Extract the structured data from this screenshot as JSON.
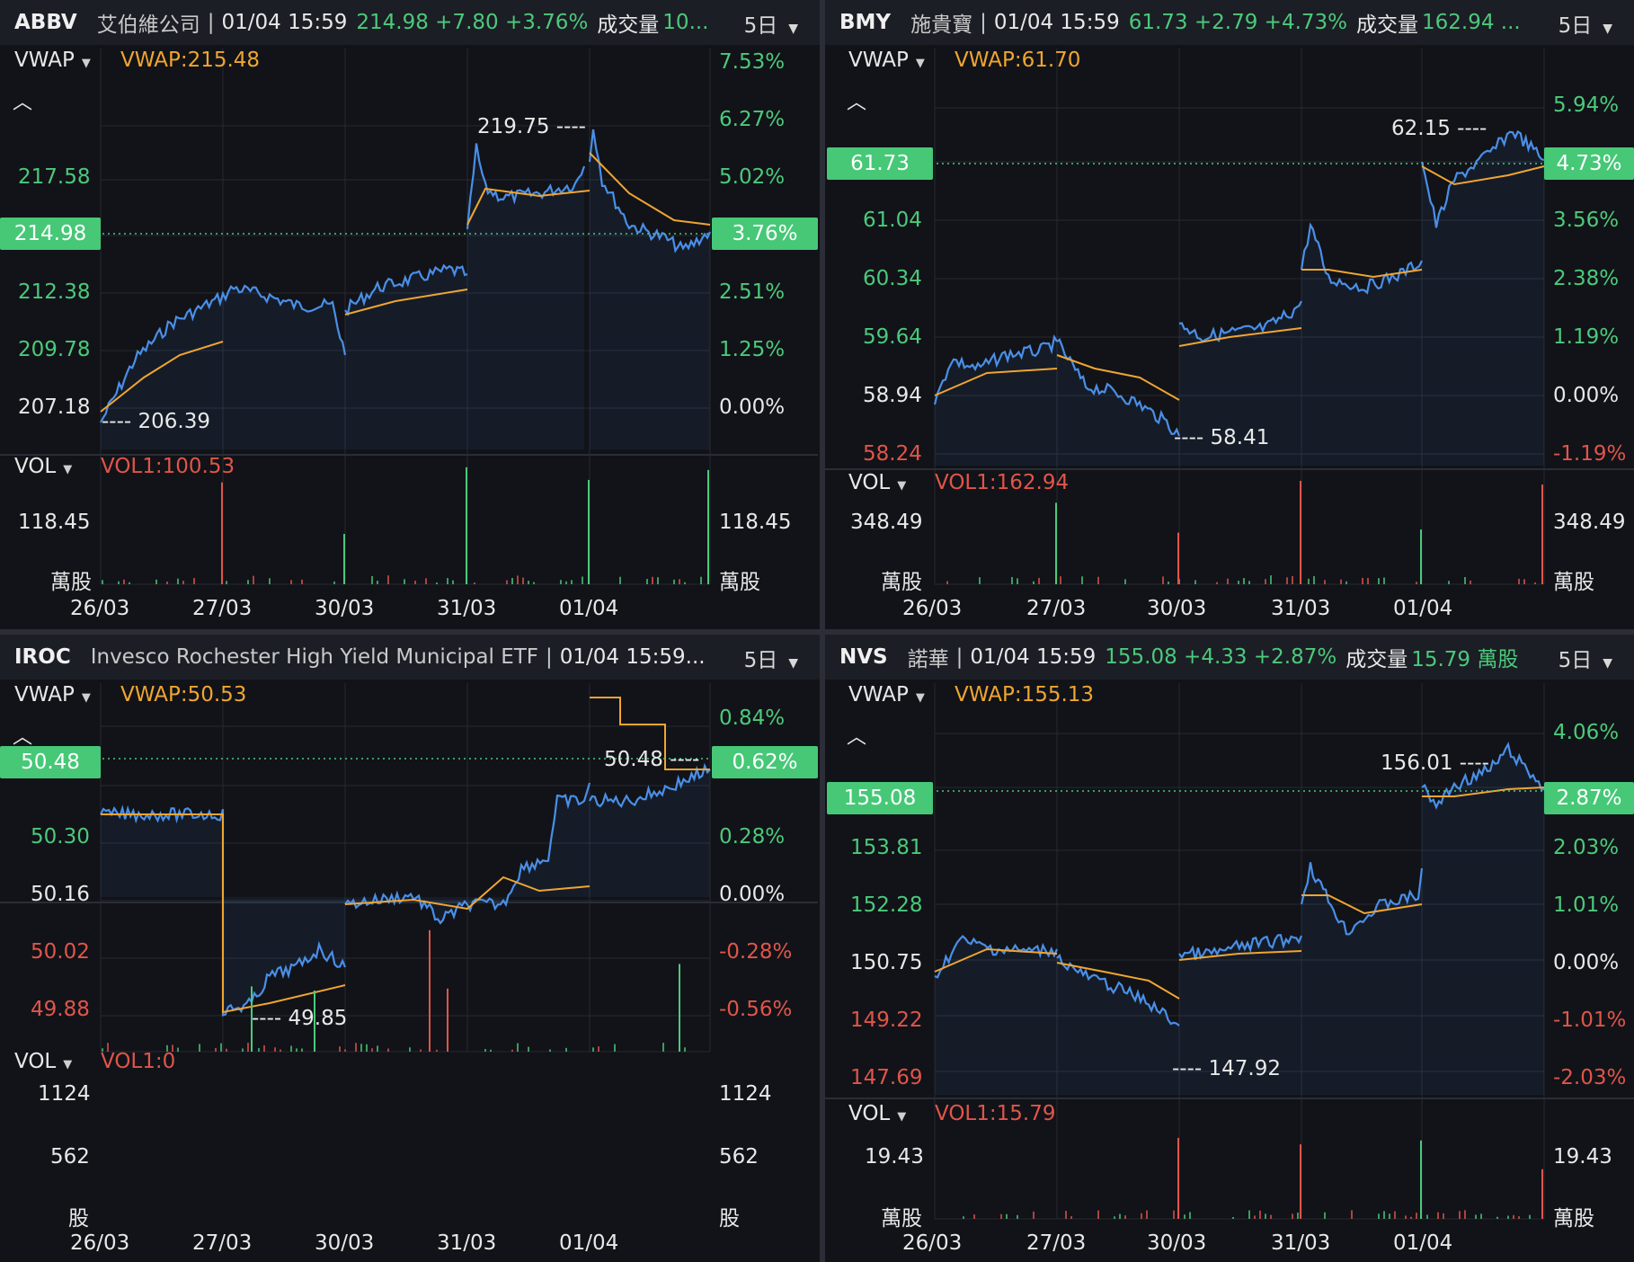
{
  "panels": {
    "abbv": {
      "symbol": "ABBV",
      "name": "艾伯維公司",
      "time": "01/04 15:59",
      "quote": "214.98 +7.80 +3.76%",
      "volume_label": "成交量",
      "volume_value": "10...",
      "period": "5日",
      "vwap_label": "VWAP",
      "vwap_value": "VWAP:215.48",
      "price_ticks": [
        "217.58",
        "212.38",
        "209.78",
        "207.18"
      ],
      "pct_ticks": [
        "7.53%",
        "6.27%",
        "5.02%",
        "2.51%",
        "1.25%",
        "0.00%"
      ],
      "current_price": "214.98",
      "current_pct": "3.76%",
      "high_label": "219.75 ----",
      "low_label": "---- 206.39",
      "vol_label": "VOL",
      "vol_value": "VOL1:100.53",
      "vol_tick": "118.45",
      "vol_unit": "萬股",
      "dates": [
        "26/03",
        "27/03",
        "30/03",
        "31/03",
        "01/04"
      ]
    },
    "bmy": {
      "symbol": "BMY",
      "name": "施貴寶",
      "time": "01/04 15:59",
      "quote": "61.73 +2.79 +4.73%",
      "volume_label": "成交量",
      "volume_value": "162.94 ...",
      "period": "5日",
      "vwap_label": "VWAP",
      "vwap_value": "VWAP:61.70",
      "price_ticks": [
        "61.04",
        "60.34",
        "59.64",
        "58.94",
        "58.24"
      ],
      "pct_ticks": [
        "5.94%",
        "3.56%",
        "2.38%",
        "1.19%",
        "0.00%",
        "-1.19%"
      ],
      "current_price": "61.73",
      "current_pct": "4.73%",
      "high_label": "62.15 ----",
      "low_label": "---- 58.41",
      "vol_label": "VOL",
      "vol_value": "VOL1:162.94",
      "vol_tick": "348.49",
      "vol_unit": "萬股",
      "dates": [
        "26/03",
        "27/03",
        "30/03",
        "31/03",
        "01/04"
      ]
    },
    "iroc": {
      "symbol": "IROC",
      "name": "Invesco Rochester High Yield Municipal ETF",
      "time": "01/04 15:59...",
      "period": "5日",
      "vwap_label": "VWAP",
      "vwap_value": "VWAP:50.53",
      "price_ticks": [
        "50.30",
        "50.16",
        "50.02",
        "49.88"
      ],
      "pct_ticks": [
        "0.84%",
        "0.28%",
        "0.00%",
        "-0.28%",
        "-0.56%"
      ],
      "current_price": "50.48",
      "current_pct": "0.62%",
      "high_label": "50.48 ----",
      "low_label": "---- 49.85",
      "vol_label": "VOL",
      "vol_value": "VOL1:0",
      "vol_ticks": [
        "1124",
        "562"
      ],
      "vol_unit": "股",
      "dates": [
        "26/03",
        "27/03",
        "30/03",
        "31/03",
        "01/04"
      ]
    },
    "nvs": {
      "symbol": "NVS",
      "name": "諾華",
      "time": "01/04 15:59",
      "quote": "155.08 +4.33 +2.87%",
      "volume_label": "成交量",
      "volume_value": "15.79 萬股",
      "period": "5日",
      "vwap_label": "VWAP",
      "vwap_value": "VWAP:155.13",
      "price_ticks": [
        "153.81",
        "152.28",
        "150.75",
        "149.22",
        "147.69"
      ],
      "pct_ticks": [
        "4.06%",
        "2.03%",
        "1.01%",
        "0.00%",
        "-1.01%",
        "-2.03%"
      ],
      "current_price": "155.08",
      "current_pct": "2.87%",
      "high_label": "156.01 ----",
      "low_label": "---- 147.92",
      "vol_label": "VOL",
      "vol_value": "VOL1:15.79",
      "vol_tick": "19.43",
      "vol_unit": "萬股",
      "dates": [
        "26/03",
        "27/03",
        "30/03",
        "31/03",
        "01/04"
      ]
    }
  },
  "colors": {
    "up": "#4cc97a",
    "down": "#e0554a",
    "vwap": "#f0a531",
    "price_line": "#4a8fe7",
    "grid": "#262931"
  }
}
